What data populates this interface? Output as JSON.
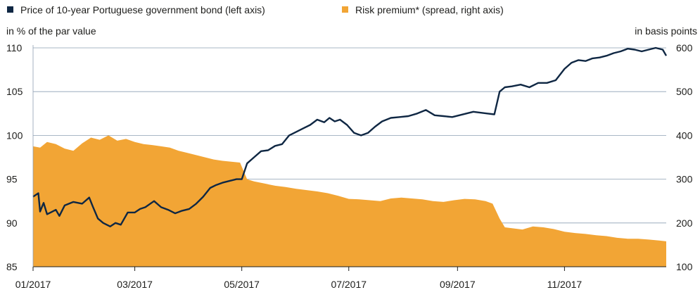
{
  "chart_data": {
    "type": "area",
    "legend": [
      {
        "label": "Price of 10-year Portuguese government bond (left axis)",
        "color": "#0f2743",
        "marker": "square"
      },
      {
        "label": "Risk premium* (spread, right axis)",
        "color": "#f2a535",
        "marker": "square"
      }
    ],
    "left_axis": {
      "label": "in % of the par value",
      "ylim": [
        85,
        110
      ],
      "ticks": [
        "85",
        "90",
        "95",
        "100",
        "105",
        "110"
      ]
    },
    "right_axis": {
      "label": "in basis points",
      "ylim": [
        100,
        600
      ],
      "ticks": [
        "100",
        "200",
        "300",
        "400",
        "500",
        "600"
      ]
    },
    "x_axis": {
      "range": [
        "2017-01-02",
        "2017-12-29"
      ],
      "ticks": [
        {
          "label": "01/2017",
          "date": "2017-01-02"
        },
        {
          "label": "03/2017",
          "date": "2017-03-01"
        },
        {
          "label": "05/2017",
          "date": "2017-05-01"
        },
        {
          "label": "07/2017",
          "date": "2017-07-01"
        },
        {
          "label": "09/2017",
          "date": "2017-09-01"
        },
        {
          "label": "11/2017",
          "date": "2017-11-01"
        }
      ]
    },
    "grid": "horizontal",
    "legend_position": "top",
    "series": [
      {
        "name": "Price of 10-year Portuguese government bond (left axis)",
        "axis": "left",
        "style": "line",
        "color": "#0f2743",
        "x": [
          "2017-01-02",
          "2017-01-05",
          "2017-01-06",
          "2017-01-08",
          "2017-01-10",
          "2017-01-12",
          "2017-01-15",
          "2017-01-17",
          "2017-01-20",
          "2017-01-25",
          "2017-01-30",
          "2017-02-03",
          "2017-02-05",
          "2017-02-08",
          "2017-02-11",
          "2017-02-15",
          "2017-02-18",
          "2017-02-21",
          "2017-02-25",
          "2017-03-01",
          "2017-03-04",
          "2017-03-07",
          "2017-03-12",
          "2017-03-16",
          "2017-03-20",
          "2017-03-24",
          "2017-03-28",
          "2017-04-01",
          "2017-04-05",
          "2017-04-09",
          "2017-04-13",
          "2017-04-16",
          "2017-04-20",
          "2017-04-24",
          "2017-04-28",
          "2017-05-01",
          "2017-05-04",
          "2017-05-08",
          "2017-05-12",
          "2017-05-16",
          "2017-05-20",
          "2017-05-24",
          "2017-05-28",
          "2017-06-01",
          "2017-06-05",
          "2017-06-09",
          "2017-06-13",
          "2017-06-17",
          "2017-06-20",
          "2017-06-23",
          "2017-06-26",
          "2017-06-30",
          "2017-07-04",
          "2017-07-08",
          "2017-07-12",
          "2017-07-16",
          "2017-07-20",
          "2017-07-25",
          "2017-07-30",
          "2017-08-04",
          "2017-08-09",
          "2017-08-14",
          "2017-08-19",
          "2017-08-24",
          "2017-08-29",
          "2017-09-02",
          "2017-09-06",
          "2017-09-10",
          "2017-09-14",
          "2017-09-18",
          "2017-09-22",
          "2017-09-25",
          "2017-09-28",
          "2017-10-02",
          "2017-10-07",
          "2017-10-12",
          "2017-10-17",
          "2017-10-22",
          "2017-10-27",
          "2017-11-01",
          "2017-11-05",
          "2017-11-09",
          "2017-11-13",
          "2017-11-17",
          "2017-11-21",
          "2017-11-25",
          "2017-11-29",
          "2017-12-03",
          "2017-12-07",
          "2017-12-11",
          "2017-12-15",
          "2017-12-19",
          "2017-12-23",
          "2017-12-27",
          "2017-12-29"
        ],
        "values": [
          93.0,
          93.4,
          91.3,
          92.3,
          91.0,
          91.2,
          91.5,
          90.8,
          92.0,
          92.4,
          92.2,
          92.9,
          91.9,
          90.5,
          90.0,
          89.6,
          90.0,
          89.8,
          91.2,
          91.2,
          91.6,
          91.8,
          92.5,
          91.8,
          91.5,
          91.1,
          91.4,
          91.6,
          92.2,
          93.0,
          94.0,
          94.3,
          94.6,
          94.8,
          95.0,
          95.0,
          96.8,
          97.5,
          98.2,
          98.3,
          98.8,
          99.0,
          100.0,
          100.4,
          100.8,
          101.2,
          101.8,
          101.5,
          102.0,
          101.6,
          101.8,
          101.2,
          100.3,
          100.0,
          100.3,
          101.0,
          101.6,
          102.0,
          102.1,
          102.2,
          102.5,
          102.9,
          102.3,
          102.2,
          102.1,
          102.3,
          102.5,
          102.7,
          102.6,
          102.5,
          102.4,
          105.0,
          105.5,
          105.6,
          105.8,
          105.5,
          106.0,
          106.0,
          106.3,
          107.6,
          108.3,
          108.6,
          108.5,
          108.8,
          108.9,
          109.1,
          109.4,
          109.6,
          109.9,
          109.8,
          109.6,
          109.8,
          110.0,
          109.8,
          109.1
        ]
      },
      {
        "name": "Risk premium* (spread, right axis)",
        "axis": "right",
        "style": "area",
        "color": "#f2a535",
        "x": [
          "2017-01-02",
          "2017-01-06",
          "2017-01-10",
          "2017-01-15",
          "2017-01-20",
          "2017-01-25",
          "2017-01-30",
          "2017-02-04",
          "2017-02-09",
          "2017-02-14",
          "2017-02-19",
          "2017-02-24",
          "2017-03-01",
          "2017-03-06",
          "2017-03-11",
          "2017-03-16",
          "2017-03-21",
          "2017-03-26",
          "2017-03-31",
          "2017-04-05",
          "2017-04-10",
          "2017-04-15",
          "2017-04-20",
          "2017-04-25",
          "2017-04-30",
          "2017-05-04",
          "2017-05-08",
          "2017-05-14",
          "2017-05-20",
          "2017-05-26",
          "2017-06-01",
          "2017-06-07",
          "2017-06-13",
          "2017-06-19",
          "2017-06-25",
          "2017-07-01",
          "2017-07-07",
          "2017-07-13",
          "2017-07-19",
          "2017-07-25",
          "2017-07-31",
          "2017-08-06",
          "2017-08-12",
          "2017-08-18",
          "2017-08-24",
          "2017-08-30",
          "2017-09-05",
          "2017-09-11",
          "2017-09-17",
          "2017-09-21",
          "2017-09-25",
          "2017-09-28",
          "2017-10-02",
          "2017-10-08",
          "2017-10-14",
          "2017-10-20",
          "2017-10-26",
          "2017-11-01",
          "2017-11-07",
          "2017-11-13",
          "2017-11-19",
          "2017-11-25",
          "2017-12-01",
          "2017-12-07",
          "2017-12-13",
          "2017-12-19",
          "2017-12-25",
          "2017-12-29"
        ],
        "values": [
          375,
          372,
          385,
          380,
          370,
          365,
          382,
          395,
          390,
          400,
          388,
          392,
          385,
          380,
          378,
          375,
          372,
          365,
          360,
          355,
          350,
          345,
          342,
          340,
          338,
          300,
          295,
          290,
          285,
          282,
          278,
          275,
          272,
          268,
          262,
          255,
          254,
          252,
          250,
          256,
          258,
          256,
          254,
          250,
          248,
          252,
          255,
          254,
          250,
          244,
          210,
          190,
          188,
          185,
          192,
          190,
          186,
          180,
          177,
          175,
          172,
          170,
          166,
          164,
          164,
          162,
          160,
          158
        ]
      }
    ]
  }
}
